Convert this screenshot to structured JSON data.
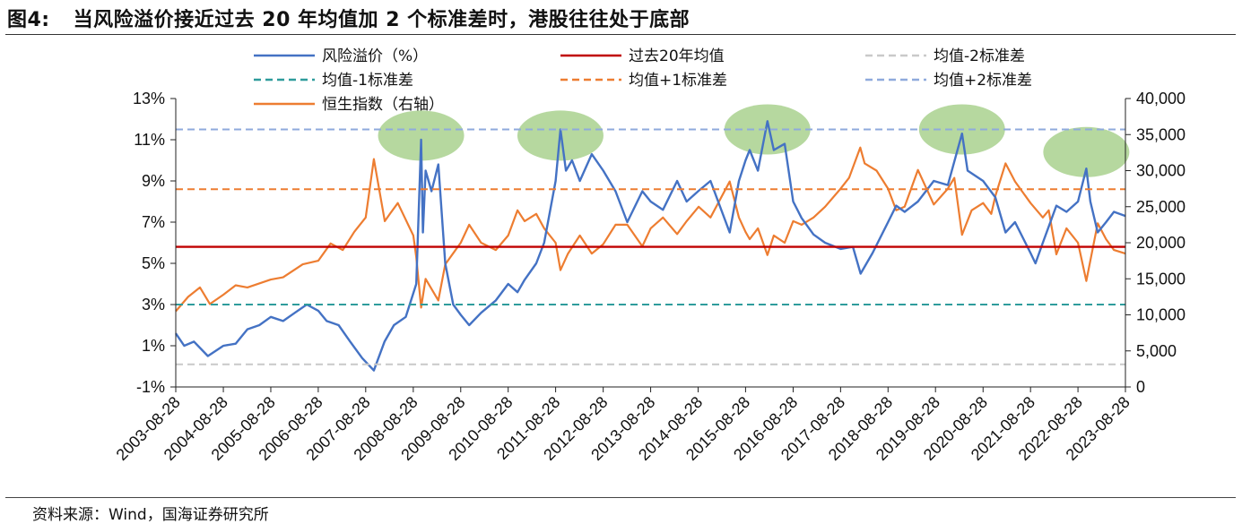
{
  "figure": {
    "label": "图4:",
    "title": "当风险溢价接近过去 20 年均值加 2 个标准差时，港股往往处于底部",
    "source": "资料来源：Wind，国海证券研究所"
  },
  "chart_data": {
    "type": "line",
    "title": "当风险溢价接近过去 20 年均值加 2 个标准差时，港股往往处于底部",
    "xlabel": "",
    "ylabel": "",
    "y2label": "",
    "x_tick_labels": [
      "2003-08-28",
      "2004-08-28",
      "2005-08-28",
      "2006-08-28",
      "2007-08-28",
      "2008-08-28",
      "2009-08-28",
      "2010-08-28",
      "2011-08-28",
      "2012-08-28",
      "2013-08-28",
      "2014-08-28",
      "2015-08-28",
      "2016-08-28",
      "2017-08-28",
      "2018-08-28",
      "2019-08-28",
      "2020-08-28",
      "2021-08-28",
      "2022-08-28",
      "2023-08-28"
    ],
    "x_range": [
      "2003-08-28",
      "2023-08-28"
    ],
    "ylim": [
      -1,
      13
    ],
    "y_ticks": [
      -1,
      1,
      3,
      5,
      7,
      9,
      11,
      13
    ],
    "y_tick_labels": [
      "-1%",
      "1%",
      "3%",
      "5%",
      "7%",
      "9%",
      "11%",
      "13%"
    ],
    "y2lim": [
      0,
      40000
    ],
    "y2_ticks": [
      0,
      5000,
      10000,
      15000,
      20000,
      25000,
      30000,
      35000,
      40000
    ],
    "y2_tick_labels": [
      "0",
      "5,000",
      "10,000",
      "15,000",
      "20,000",
      "25,000",
      "30,000",
      "35,000",
      "40,000"
    ],
    "grid": false,
    "legend_position": "top",
    "series": [
      {
        "name": "风险溢价（%）",
        "axis": "left",
        "style": "solid",
        "color": "#4472C4",
        "points": [
          [
            "2003-08-28",
            1.6
          ],
          [
            "2003-11-01",
            1.0
          ],
          [
            "2004-01-15",
            1.2
          ],
          [
            "2004-05-01",
            0.5
          ],
          [
            "2004-08-28",
            1.0
          ],
          [
            "2004-12-01",
            1.1
          ],
          [
            "2005-03-01",
            1.8
          ],
          [
            "2005-06-01",
            2.0
          ],
          [
            "2005-08-28",
            2.4
          ],
          [
            "2005-12-01",
            2.2
          ],
          [
            "2006-03-01",
            2.6
          ],
          [
            "2006-06-01",
            3.0
          ],
          [
            "2006-08-28",
            2.7
          ],
          [
            "2006-11-01",
            2.2
          ],
          [
            "2007-02-01",
            2.0
          ],
          [
            "2007-05-01",
            1.2
          ],
          [
            "2007-08-01",
            0.4
          ],
          [
            "2007-10-30",
            -0.2
          ],
          [
            "2008-01-20",
            1.2
          ],
          [
            "2008-04-01",
            2.0
          ],
          [
            "2008-07-01",
            2.4
          ],
          [
            "2008-09-20",
            4.0
          ],
          [
            "2008-10-27",
            11.0
          ],
          [
            "2008-11-10",
            6.5
          ],
          [
            "2008-12-01",
            9.5
          ],
          [
            "2009-01-15",
            8.5
          ],
          [
            "2009-03-09",
            9.8
          ],
          [
            "2009-05-01",
            5.0
          ],
          [
            "2009-07-01",
            3.0
          ],
          [
            "2009-08-28",
            2.5
          ],
          [
            "2009-11-01",
            2.0
          ],
          [
            "2010-02-01",
            2.6
          ],
          [
            "2010-05-25",
            3.2
          ],
          [
            "2010-08-28",
            4.0
          ],
          [
            "2010-11-08",
            3.6
          ],
          [
            "2011-01-01",
            4.2
          ],
          [
            "2011-04-01",
            5.0
          ],
          [
            "2011-06-01",
            6.0
          ],
          [
            "2011-08-28",
            9.0
          ],
          [
            "2011-10-04",
            11.5
          ],
          [
            "2011-11-15",
            9.5
          ],
          [
            "2012-01-01",
            10.0
          ],
          [
            "2012-03-01",
            9.0
          ],
          [
            "2012-06-01",
            10.3
          ],
          [
            "2012-08-28",
            9.5
          ],
          [
            "2012-12-01",
            8.5
          ],
          [
            "2013-03-01",
            7.0
          ],
          [
            "2013-06-25",
            8.5
          ],
          [
            "2013-08-28",
            8.0
          ],
          [
            "2013-12-01",
            7.6
          ],
          [
            "2014-03-20",
            9.0
          ],
          [
            "2014-06-01",
            8.0
          ],
          [
            "2014-08-28",
            8.5
          ],
          [
            "2014-12-01",
            9.0
          ],
          [
            "2015-04-28",
            6.5
          ],
          [
            "2015-07-08",
            9.0
          ],
          [
            "2015-08-28",
            10.0
          ],
          [
            "2015-09-29",
            10.5
          ],
          [
            "2015-12-01",
            9.5
          ],
          [
            "2016-02-12",
            11.9
          ],
          [
            "2016-04-01",
            10.5
          ],
          [
            "2016-06-24",
            10.8
          ],
          [
            "2016-08-28",
            8.0
          ],
          [
            "2016-11-01",
            7.2
          ],
          [
            "2017-02-01",
            6.4
          ],
          [
            "2017-05-01",
            6.0
          ],
          [
            "2017-08-28",
            5.7
          ],
          [
            "2017-12-01",
            5.8
          ],
          [
            "2018-01-29",
            4.5
          ],
          [
            "2018-05-01",
            5.5
          ],
          [
            "2018-08-28",
            7.0
          ],
          [
            "2018-10-30",
            7.8
          ],
          [
            "2019-01-03",
            7.5
          ],
          [
            "2019-04-15",
            8.0
          ],
          [
            "2019-08-15",
            9.0
          ],
          [
            "2019-12-01",
            8.8
          ],
          [
            "2020-03-19",
            11.3
          ],
          [
            "2020-05-01",
            9.5
          ],
          [
            "2020-08-28",
            9.0
          ],
          [
            "2020-12-01",
            8.2
          ],
          [
            "2021-02-17",
            6.5
          ],
          [
            "2021-05-01",
            7.0
          ],
          [
            "2021-08-28",
            5.5
          ],
          [
            "2021-10-05",
            5.0
          ],
          [
            "2021-12-01",
            6.0
          ],
          [
            "2022-03-15",
            7.8
          ],
          [
            "2022-06-01",
            7.5
          ],
          [
            "2022-08-28",
            8.0
          ],
          [
            "2022-10-31",
            9.6
          ],
          [
            "2022-12-01",
            8.0
          ],
          [
            "2023-01-27",
            6.5
          ],
          [
            "2023-04-01",
            7.0
          ],
          [
            "2023-06-01",
            7.5
          ],
          [
            "2023-08-28",
            7.3
          ]
        ]
      },
      {
        "name": "过去20年均值",
        "axis": "left",
        "style": "solid",
        "color": "#C00000",
        "value": 5.8
      },
      {
        "name": "均值-2标准差",
        "axis": "left",
        "style": "dashed",
        "color": "#C9C9C9",
        "value": 0.1
      },
      {
        "name": "均值-1标准差",
        "axis": "left",
        "style": "dashed",
        "color": "#2E9C9C",
        "value": 3.0
      },
      {
        "name": "均值+1标准差",
        "axis": "left",
        "style": "dashed",
        "color": "#ED7D31",
        "value": 8.6
      },
      {
        "name": "均值+2标准差",
        "axis": "left",
        "style": "dashed",
        "color": "#8FAADC",
        "value": 11.5
      },
      {
        "name": "恒生指数（右轴）",
        "axis": "right",
        "style": "solid",
        "color": "#ED7D31",
        "points": [
          [
            "2003-08-28",
            10500
          ],
          [
            "2003-12-01",
            12500
          ],
          [
            "2004-03-01",
            13800
          ],
          [
            "2004-05-17",
            11500
          ],
          [
            "2004-08-28",
            12800
          ],
          [
            "2004-12-01",
            14100
          ],
          [
            "2005-03-01",
            13800
          ],
          [
            "2005-08-28",
            14900
          ],
          [
            "2005-12-01",
            15200
          ],
          [
            "2006-05-01",
            17000
          ],
          [
            "2006-08-28",
            17500
          ],
          [
            "2006-12-01",
            19900
          ],
          [
            "2007-03-05",
            19000
          ],
          [
            "2007-06-01",
            21500
          ],
          [
            "2007-08-28",
            23500
          ],
          [
            "2007-10-30",
            31600
          ],
          [
            "2008-01-22",
            23000
          ],
          [
            "2008-03-01",
            24000
          ],
          [
            "2008-05-01",
            25500
          ],
          [
            "2008-08-28",
            21000
          ],
          [
            "2008-09-20",
            18000
          ],
          [
            "2008-10-27",
            11000
          ],
          [
            "2008-12-01",
            15000
          ],
          [
            "2009-03-09",
            12000
          ],
          [
            "2009-05-01",
            17000
          ],
          [
            "2009-08-28",
            20000
          ],
          [
            "2009-11-01",
            22500
          ],
          [
            "2010-02-01",
            20000
          ],
          [
            "2010-05-25",
            19000
          ],
          [
            "2010-08-28",
            21000
          ],
          [
            "2010-11-08",
            24500
          ],
          [
            "2011-01-01",
            23000
          ],
          [
            "2011-04-01",
            24000
          ],
          [
            "2011-06-01",
            22000
          ],
          [
            "2011-08-28",
            20000
          ],
          [
            "2011-10-04",
            16200
          ],
          [
            "2011-12-01",
            18500
          ],
          [
            "2012-03-01",
            21000
          ],
          [
            "2012-06-01",
            18500
          ],
          [
            "2012-08-28",
            19800
          ],
          [
            "2012-12-01",
            22500
          ],
          [
            "2013-03-01",
            22500
          ],
          [
            "2013-06-25",
            19500
          ],
          [
            "2013-08-28",
            22000
          ],
          [
            "2013-12-01",
            23500
          ],
          [
            "2014-03-20",
            21200
          ],
          [
            "2014-06-01",
            23000
          ],
          [
            "2014-09-01",
            25000
          ],
          [
            "2014-12-01",
            23500
          ],
          [
            "2015-04-28",
            28500
          ],
          [
            "2015-07-08",
            23500
          ],
          [
            "2015-08-28",
            21500
          ],
          [
            "2015-09-29",
            20500
          ],
          [
            "2015-12-01",
            22000
          ],
          [
            "2016-02-12",
            18300
          ],
          [
            "2016-04-01",
            21000
          ],
          [
            "2016-06-24",
            20000
          ],
          [
            "2016-08-28",
            23000
          ],
          [
            "2016-11-01",
            22500
          ],
          [
            "2017-02-01",
            23500
          ],
          [
            "2017-05-01",
            25000
          ],
          [
            "2017-08-28",
            27500
          ],
          [
            "2017-11-01",
            29000
          ],
          [
            "2018-01-26",
            33200
          ],
          [
            "2018-03-01",
            31000
          ],
          [
            "2018-06-01",
            30000
          ],
          [
            "2018-08-28",
            27500
          ],
          [
            "2018-10-30",
            24500
          ],
          [
            "2019-01-03",
            25000
          ],
          [
            "2019-04-15",
            30100
          ],
          [
            "2019-08-15",
            25300
          ],
          [
            "2019-12-01",
            27500
          ],
          [
            "2020-01-20",
            29000
          ],
          [
            "2020-03-19",
            21100
          ],
          [
            "2020-06-01",
            24500
          ],
          [
            "2020-08-28",
            25500
          ],
          [
            "2020-10-30",
            24000
          ],
          [
            "2020-12-01",
            26500
          ],
          [
            "2021-02-17",
            31000
          ],
          [
            "2021-05-01",
            28500
          ],
          [
            "2021-08-28",
            25500
          ],
          [
            "2021-12-01",
            23500
          ],
          [
            "2022-01-15",
            24500
          ],
          [
            "2022-03-15",
            18400
          ],
          [
            "2022-06-01",
            22000
          ],
          [
            "2022-08-28",
            20000
          ],
          [
            "2022-10-31",
            14700
          ],
          [
            "2023-01-27",
            22700
          ],
          [
            "2023-04-01",
            20500
          ],
          [
            "2023-06-01",
            19000
          ],
          [
            "2023-08-28",
            18500
          ]
        ]
      }
    ],
    "highlights": [
      {
        "x": "2008-10-27",
        "y": 11.2,
        "color": "#A9D18E"
      },
      {
        "x": "2011-10-04",
        "y": 11.2,
        "color": "#A9D18E"
      },
      {
        "x": "2016-02-12",
        "y": 11.5,
        "color": "#A9D18E"
      },
      {
        "x": "2020-03-19",
        "y": 11.5,
        "color": "#A9D18E"
      },
      {
        "x": "2022-10-31",
        "y": 10.4,
        "color": "#A9D18E"
      }
    ]
  }
}
